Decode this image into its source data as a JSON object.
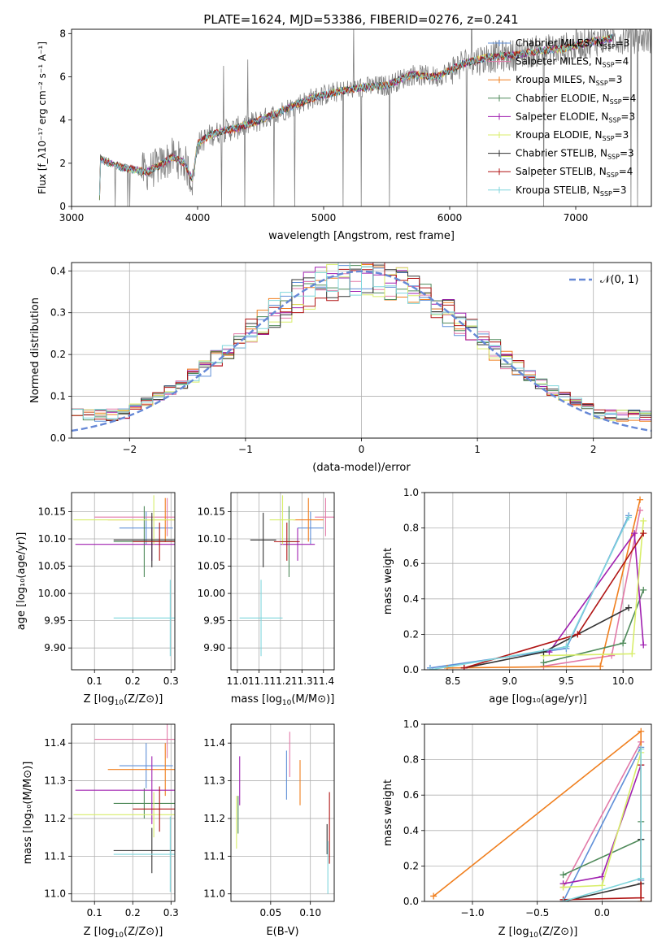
{
  "figure_title": "PLATE=1624, MJD=53386, FIBERID=0276, z=0.241",
  "colors": {
    "Chabrier MILES": "#5f8fd8",
    "Salpeter MILES": "#e27aa8",
    "Kroupa MILES": "#f07f1e",
    "Chabrier ELODIE": "#4f8a5a",
    "Salpeter ELODIE": "#a020b0",
    "Kroupa ELODIE": "#d8ee6a",
    "Chabrier STELIB": "#333333",
    "Salpeter STELIB": "#b01414",
    "Kroupa STELIB": "#7fd6dc",
    "data": "#808080",
    "normal": "#6688d6"
  },
  "chart_data": [
    {
      "id": "spectrum",
      "type": "line",
      "xlabel": "wavelength [Angstrom, rest frame]",
      "ylabel": "Flux [f_λ10^-17 erg cm^-2 s^-1 A^-1]",
      "xlim": [
        3000,
        7600
      ],
      "ylim": [
        0,
        8.2
      ],
      "xticks": [
        3000,
        4000,
        5000,
        6000,
        7000
      ],
      "yticks": [
        0,
        2,
        4,
        6,
        8
      ],
      "grid": false,
      "legend_position": "right",
      "legend": [
        {
          "name": "Chabrier MILES",
          "nssp": "3"
        },
        {
          "name": "Salpeter MILES",
          "nssp": "4"
        },
        {
          "name": "Kroupa MILES",
          "nssp": "3"
        },
        {
          "name": "Chabrier ELODIE",
          "nssp": "4"
        },
        {
          "name": "Salpeter ELODIE",
          "nssp": "3"
        },
        {
          "name": "Kroupa ELODIE",
          "nssp": "3"
        },
        {
          "name": "Chabrier STELIB",
          "nssp": "3"
        },
        {
          "name": "Salpeter STELIB",
          "nssp": "4"
        },
        {
          "name": "Kroupa STELIB",
          "nssp": "3"
        }
      ],
      "continuum": {
        "x": [
          3220,
          3230,
          3300,
          3400,
          3500,
          3600,
          3700,
          3800,
          3900,
          3960,
          4000,
          4100,
          4200,
          4300,
          4500,
          4700,
          4900,
          5100,
          5300,
          5500,
          5700,
          5900,
          6100,
          6300,
          6500,
          6700,
          6900,
          7100,
          7300
        ],
        "y": [
          0.0,
          2.2,
          2.0,
          1.8,
          1.7,
          1.6,
          1.9,
          2.3,
          2.0,
          1.2,
          2.9,
          3.3,
          3.5,
          3.6,
          4.0,
          4.5,
          5.0,
          5.3,
          5.5,
          5.6,
          6.1,
          6.0,
          6.6,
          6.9,
          7.0,
          7.2,
          7.3,
          7.6,
          7.8
        ]
      }
    },
    {
      "id": "residuals",
      "type": "line",
      "xlabel": "(data-model)/error",
      "ylabel": "Normed distribution",
      "xlim": [
        -2.5,
        2.5
      ],
      "ylim": [
        0,
        0.42
      ],
      "xticks": [
        -2,
        -1,
        0,
        1,
        2
      ],
      "yticks": [
        0.0,
        0.1,
        0.2,
        0.3,
        0.4
      ],
      "grid": true,
      "legend_position": "top-right",
      "normal_label": "𝒩(0, 1)"
    },
    {
      "id": "age-vs-Z",
      "type": "scatter",
      "xlabel": "Z [log10(Z/Z☉)]",
      "ylabel": "age [log10(age/yr)]",
      "xlim": [
        0.04,
        0.31
      ],
      "ylim": [
        9.86,
        10.185
      ],
      "xticks": [
        0.1,
        0.2,
        0.3
      ],
      "yticks": [
        9.9,
        9.95,
        10.0,
        10.05,
        10.1,
        10.15
      ],
      "grid": true,
      "points": [
        {
          "model": "Chabrier MILES",
          "x": 0.235,
          "xerr": 0.07,
          "y": 10.12,
          "yerr": 0.03
        },
        {
          "model": "Salpeter MILES",
          "x": 0.29,
          "xerr": 0.19,
          "y": 10.14,
          "yerr": 0.035
        },
        {
          "model": "Kroupa MILES",
          "x": 0.285,
          "xerr": 0.15,
          "y": 10.135,
          "yerr": 0.04
        },
        {
          "model": "Chabrier ELODIE",
          "x": 0.23,
          "xerr": 0.08,
          "y": 10.095,
          "yerr": 0.065
        },
        {
          "model": "Salpeter ELODIE",
          "x": 0.25,
          "xerr": 0.2,
          "y": 10.09,
          "yerr": 0.03
        },
        {
          "model": "Kroupa ELODIE",
          "x": 0.255,
          "xerr": 0.21,
          "y": 10.135,
          "yerr": 0.045
        },
        {
          "model": "Chabrier STELIB",
          "x": 0.25,
          "xerr": 0.1,
          "y": 10.098,
          "yerr": 0.05
        },
        {
          "model": "Salpeter STELIB",
          "x": 0.27,
          "xerr": 0.07,
          "y": 10.095,
          "yerr": 0.035
        },
        {
          "model": "Kroupa STELIB",
          "x": 0.298,
          "xerr": 0.148,
          "y": 9.955,
          "yerr": 0.07
        }
      ]
    },
    {
      "id": "age-vs-mass",
      "type": "scatter",
      "xlabel": "mass [log10(M/M☉)]",
      "xlim": [
        10.97,
        11.45
      ],
      "ylim": [
        9.86,
        10.185
      ],
      "xticks": [
        11.0,
        11.1,
        11.2,
        11.3,
        11.4
      ],
      "yticks": [
        9.9,
        9.95,
        10.0,
        10.05,
        10.1,
        10.15
      ],
      "grid": true,
      "points": [
        {
          "model": "Chabrier MILES",
          "x": 11.34,
          "xerr": 0.06,
          "y": 10.12,
          "yerr": 0.03
        },
        {
          "model": "Salpeter MILES",
          "x": 11.41,
          "xerr": 0.05,
          "y": 10.14,
          "yerr": 0.035
        },
        {
          "model": "Kroupa MILES",
          "x": 11.33,
          "xerr": 0.07,
          "y": 10.135,
          "yerr": 0.04
        },
        {
          "model": "Chabrier ELODIE",
          "x": 11.24,
          "xerr": 0.04,
          "y": 10.095,
          "yerr": 0.065
        },
        {
          "model": "Salpeter ELODIE",
          "x": 11.28,
          "xerr": 0.08,
          "y": 10.09,
          "yerr": 0.03
        },
        {
          "model": "Kroupa ELODIE",
          "x": 11.21,
          "xerr": 0.06,
          "y": 10.135,
          "yerr": 0.045
        },
        {
          "model": "Chabrier STELIB",
          "x": 11.12,
          "xerr": 0.06,
          "y": 10.098,
          "yerr": 0.05
        },
        {
          "model": "Salpeter STELIB",
          "x": 11.23,
          "xerr": 0.06,
          "y": 10.095,
          "yerr": 0.035
        },
        {
          "model": "Kroupa STELIB",
          "x": 11.11,
          "xerr": 0.1,
          "y": 9.955,
          "yerr": 0.07
        }
      ]
    },
    {
      "id": "mass-weight-vs-age",
      "type": "line",
      "xlabel": "age [log10(age/yr)]",
      "ylabel": "mass weight",
      "xlim": [
        8.25,
        10.25
      ],
      "ylim": [
        0,
        1.0
      ],
      "xticks": [
        8.5,
        9.0,
        9.5,
        10.0
      ],
      "yticks": [
        0.0,
        0.2,
        0.4,
        0.6,
        0.8,
        1.0
      ],
      "grid": true,
      "series": [
        {
          "model": "Chabrier MILES",
          "x": [
            8.3,
            9.5,
            10.05
          ],
          "y": [
            0.01,
            0.12,
            0.87
          ]
        },
        {
          "model": "Salpeter MILES",
          "x": [
            9.3,
            9.9,
            10.15
          ],
          "y": [
            0.02,
            0.08,
            0.9
          ]
        },
        {
          "model": "Kroupa MILES",
          "x": [
            8.45,
            9.8,
            10.15
          ],
          "y": [
            0.01,
            0.02,
            0.96
          ]
        },
        {
          "model": "Chabrier ELODIE",
          "x": [
            9.3,
            10.0,
            10.18
          ],
          "y": [
            0.04,
            0.15,
            0.45
          ]
        },
        {
          "model": "Salpeter ELODIE",
          "x": [
            9.35,
            10.1,
            10.18
          ],
          "y": [
            0.1,
            0.77,
            0.14
          ]
        },
        {
          "model": "Kroupa ELODIE",
          "x": [
            9.3,
            10.08,
            10.18
          ],
          "y": [
            0.08,
            0.09,
            0.84
          ]
        },
        {
          "model": "Chabrier STELIB",
          "x": [
            8.6,
            9.3,
            10.05
          ],
          "y": [
            0.01,
            0.1,
            0.35
          ]
        },
        {
          "model": "Salpeter STELIB",
          "x": [
            8.6,
            9.6,
            10.18
          ],
          "y": [
            0.01,
            0.2,
            0.77
          ]
        },
        {
          "model": "Kroupa STELIB",
          "x": [
            8.3,
            9.5,
            10.05
          ],
          "y": [
            0.0,
            0.13,
            0.86
          ]
        }
      ]
    },
    {
      "id": "mass-vs-Z",
      "type": "scatter",
      "xlabel": "Z [log10(Z/Z☉)]",
      "ylabel": "mass [log10(M/M☉)]",
      "xlim": [
        0.04,
        0.31
      ],
      "ylim": [
        10.98,
        11.45
      ],
      "xticks": [
        0.1,
        0.2,
        0.3
      ],
      "yticks": [
        11.0,
        11.1,
        11.2,
        11.3,
        11.4
      ],
      "grid": true,
      "points": [
        {
          "model": "Chabrier MILES",
          "x": 0.235,
          "xerr": 0.07,
          "y": 11.34,
          "yerr": 0.06
        },
        {
          "model": "Salpeter MILES",
          "x": 0.29,
          "xerr": 0.19,
          "y": 11.41,
          "yerr": 0.05
        },
        {
          "model": "Kroupa MILES",
          "x": 0.285,
          "xerr": 0.15,
          "y": 11.33,
          "yerr": 0.07
        },
        {
          "model": "Chabrier ELODIE",
          "x": 0.23,
          "xerr": 0.08,
          "y": 11.24,
          "yerr": 0.04
        },
        {
          "model": "Salpeter ELODIE",
          "x": 0.25,
          "xerr": 0.2,
          "y": 11.275,
          "yerr": 0.09
        },
        {
          "model": "Kroupa ELODIE",
          "x": 0.255,
          "xerr": 0.21,
          "y": 11.21,
          "yerr": 0.06
        },
        {
          "model": "Chabrier STELIB",
          "x": 0.25,
          "xerr": 0.1,
          "y": 11.115,
          "yerr": 0.06
        },
        {
          "model": "Salpeter STELIB",
          "x": 0.27,
          "xerr": 0.07,
          "y": 11.225,
          "yerr": 0.06
        },
        {
          "model": "Kroupa STELIB",
          "x": 0.298,
          "xerr": 0.148,
          "y": 11.105,
          "yerr": 0.1
        }
      ]
    },
    {
      "id": "mass-vs-ebv",
      "type": "scatter",
      "xlabel": "E(B-V)",
      "xlim": [
        0.0,
        0.13
      ],
      "ylim": [
        10.98,
        11.45
      ],
      "xticks": [
        0.05,
        0.1
      ],
      "yticks": [
        11.0,
        11.1,
        11.2,
        11.3,
        11.4
      ],
      "grid": true,
      "points": [
        {
          "model": "Chabrier MILES",
          "x": 0.07,
          "y": 11.315,
          "yerr": 0.065
        },
        {
          "model": "Salpeter MILES",
          "x": 0.074,
          "y": 11.37,
          "yerr": 0.06
        },
        {
          "model": "Kroupa MILES",
          "x": 0.087,
          "y": 11.295,
          "yerr": 0.06
        },
        {
          "model": "Chabrier ELODIE",
          "x": 0.009,
          "y": 11.21,
          "yerr": 0.05
        },
        {
          "model": "Salpeter ELODIE",
          "x": 0.011,
          "y": 11.3,
          "yerr": 0.065
        },
        {
          "model": "Kroupa ELODIE",
          "x": 0.007,
          "y": 11.19,
          "yerr": 0.07
        },
        {
          "model": "Chabrier STELIB",
          "x": 0.121,
          "y": 11.145,
          "yerr": 0.04
        },
        {
          "model": "Salpeter STELIB",
          "x": 0.124,
          "y": 11.175,
          "yerr": 0.095
        },
        {
          "model": "Kroupa STELIB",
          "x": 0.122,
          "y": 11.07,
          "yerr": 0.07
        }
      ]
    },
    {
      "id": "mass-weight-vs-Z",
      "type": "line",
      "xlabel": "Z [log10(Z/Z☉)]",
      "ylabel": "mass weight",
      "xlim": [
        -1.37,
        0.38
      ],
      "ylim": [
        0,
        1.0
      ],
      "xticks": [
        -1.0,
        -0.5,
        0.0
      ],
      "yticks": [
        0.0,
        0.2,
        0.4,
        0.6,
        0.8,
        1.0
      ],
      "grid": true,
      "series": [
        {
          "model": "Chabrier MILES",
          "x": [
            -0.3,
            0.3,
            0.3
          ],
          "y": [
            0.0,
            0.87,
            0.12
          ]
        },
        {
          "model": "Salpeter MILES",
          "x": [
            -0.3,
            0.3,
            0.3
          ],
          "y": [
            0.08,
            0.9,
            0.02
          ]
        },
        {
          "model": "Kroupa MILES",
          "x": [
            -1.3,
            0.3,
            0.3
          ],
          "y": [
            0.03,
            0.96,
            0.0
          ]
        },
        {
          "model": "Chabrier ELODIE",
          "x": [
            -0.3,
            0.3,
            0.3
          ],
          "y": [
            0.15,
            0.35,
            0.45
          ]
        },
        {
          "model": "Salpeter ELODIE",
          "x": [
            -0.3,
            0.0,
            0.3
          ],
          "y": [
            0.1,
            0.14,
            0.77
          ]
        },
        {
          "model": "Kroupa ELODIE",
          "x": [
            -0.3,
            0.0,
            0.3
          ],
          "y": [
            0.08,
            0.09,
            0.84
          ]
        },
        {
          "model": "Chabrier STELIB",
          "x": [
            -0.3,
            0.3,
            0.3
          ],
          "y": [
            0.0,
            0.1,
            0.35
          ]
        },
        {
          "model": "Salpeter STELIB",
          "x": [
            -0.3,
            0.3,
            0.3
          ],
          "y": [
            0.01,
            0.02,
            0.77
          ]
        },
        {
          "model": "Kroupa STELIB",
          "x": [
            -0.3,
            0.3,
            0.3
          ],
          "y": [
            0.0,
            0.13,
            0.86
          ]
        }
      ]
    }
  ]
}
